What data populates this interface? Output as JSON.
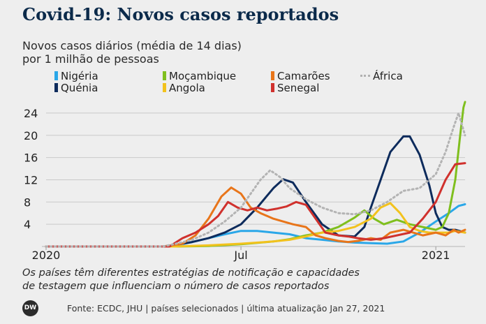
{
  "title": "Covid-19: Novos casos reportados",
  "subtitle_line1": "Novos casos diários (média de 14 dias)",
  "subtitle_line2": "por 1 milhão de pessoas",
  "note_line1": "Os países têm diferentes estratégias de notificação e capacidades",
  "note_line2": "de testagem que influenciam o número de casos reportados",
  "logo_text": "DW",
  "source": "Fonte: ECDC, JHU | países selecionados | última atualização Jan 27, 2021",
  "colors": {
    "nigeria": "#2aa7e8",
    "quenia": "#0d2b5c",
    "mocambique": "#7fbf1e",
    "angola": "#f2c21d",
    "camaroes": "#e8751a",
    "senegal": "#d0312d",
    "africa": "#b3b3b3"
  },
  "chart_data": {
    "type": "line",
    "x_unit": "months since Jan 2020",
    "x_ticks": [
      {
        "x": 0,
        "label": "2020"
      },
      {
        "x": 6,
        "label": "Jul"
      },
      {
        "x": 12,
        "label": "2021"
      }
    ],
    "xlim": [
      0,
      12.9
    ],
    "ylim": [
      0,
      26
    ],
    "y_ticks": [
      4,
      8,
      12,
      16,
      20,
      24
    ],
    "grid": true,
    "legend_position": "top",
    "series": [
      {
        "name": "Nigéria",
        "key": "nigeria",
        "style": "solid",
        "points": [
          [
            0,
            0
          ],
          [
            3.6,
            0
          ],
          [
            4,
            0.2
          ],
          [
            4.5,
            0.8
          ],
          [
            5,
            1.5
          ],
          [
            5.5,
            2.2
          ],
          [
            6,
            2.8
          ],
          [
            6.5,
            2.8
          ],
          [
            7,
            2.5
          ],
          [
            7.5,
            2.2
          ],
          [
            8,
            1.5
          ],
          [
            8.5,
            1.2
          ],
          [
            9,
            0.9
          ],
          [
            9.5,
            0.7
          ],
          [
            10,
            0.6
          ],
          [
            10.5,
            0.5
          ],
          [
            11,
            0.9
          ],
          [
            11.5,
            2.5
          ],
          [
            12,
            4.5
          ],
          [
            12.4,
            6
          ],
          [
            12.7,
            7.3
          ],
          [
            12.9,
            7.6
          ]
        ]
      },
      {
        "name": "Quénia",
        "key": "quenia",
        "style": "solid",
        "points": [
          [
            0,
            0
          ],
          [
            3.6,
            0
          ],
          [
            4,
            0.3
          ],
          [
            4.5,
            0.8
          ],
          [
            5,
            1.5
          ],
          [
            5.5,
            2.5
          ],
          [
            6,
            4
          ],
          [
            6.5,
            7
          ],
          [
            7,
            10.5
          ],
          [
            7.3,
            12.1
          ],
          [
            7.6,
            11.5
          ],
          [
            8,
            8
          ],
          [
            8.5,
            4
          ],
          [
            9,
            2
          ],
          [
            9.5,
            1.8
          ],
          [
            9.8,
            3.5
          ],
          [
            10,
            7
          ],
          [
            10.3,
            12
          ],
          [
            10.6,
            17
          ],
          [
            11,
            19.8
          ],
          [
            11.2,
            19.8
          ],
          [
            11.5,
            16.5
          ],
          [
            11.8,
            11
          ],
          [
            12,
            6
          ],
          [
            12.2,
            3.5
          ],
          [
            12.4,
            3
          ],
          [
            12.6,
            3
          ],
          [
            12.9,
            2.5
          ]
        ]
      },
      {
        "name": "Moçambique",
        "key": "mocambique",
        "style": "solid",
        "points": [
          [
            0,
            0
          ],
          [
            4,
            0
          ],
          [
            5,
            0.1
          ],
          [
            6,
            0.4
          ],
          [
            7,
            0.9
          ],
          [
            7.5,
            1.3
          ],
          [
            8,
            2
          ],
          [
            8.5,
            2.5
          ],
          [
            9,
            3.5
          ],
          [
            9.5,
            5.2
          ],
          [
            9.8,
            6.5
          ],
          [
            10.1,
            5
          ],
          [
            10.4,
            4
          ],
          [
            10.8,
            4.8
          ],
          [
            11.2,
            4
          ],
          [
            11.6,
            3.5
          ],
          [
            12,
            3
          ],
          [
            12.2,
            3.5
          ],
          [
            12.4,
            6
          ],
          [
            12.6,
            12
          ],
          [
            12.75,
            20
          ],
          [
            12.85,
            25
          ],
          [
            12.9,
            26
          ]
        ]
      },
      {
        "name": "Angola",
        "key": "angola",
        "style": "solid",
        "points": [
          [
            0,
            0
          ],
          [
            4,
            0
          ],
          [
            5,
            0.2
          ],
          [
            6,
            0.5
          ],
          [
            7,
            0.9
          ],
          [
            7.5,
            1.2
          ],
          [
            8,
            1.8
          ],
          [
            8.5,
            2.5
          ],
          [
            9,
            2.8
          ],
          [
            9.5,
            3.5
          ],
          [
            10,
            5
          ],
          [
            10.3,
            7
          ],
          [
            10.6,
            7.8
          ],
          [
            10.9,
            6
          ],
          [
            11.2,
            3.5
          ],
          [
            11.5,
            2.8
          ],
          [
            11.8,
            2.5
          ],
          [
            12,
            2.5
          ],
          [
            12.4,
            2.5
          ],
          [
            12.6,
            2.8
          ],
          [
            12.9,
            2.5
          ]
        ]
      },
      {
        "name": "Camarões",
        "key": "camaroes",
        "style": "solid",
        "points": [
          [
            0,
            0
          ],
          [
            3.6,
            0
          ],
          [
            4.2,
            0.5
          ],
          [
            4.6,
            2
          ],
          [
            5,
            5
          ],
          [
            5.4,
            9
          ],
          [
            5.7,
            10.6
          ],
          [
            6,
            9.5
          ],
          [
            6.3,
            7
          ],
          [
            6.6,
            6
          ],
          [
            7,
            5
          ],
          [
            7.3,
            4.5
          ],
          [
            7.6,
            4
          ],
          [
            8,
            3.5
          ],
          [
            8.3,
            2
          ],
          [
            8.6,
            1.5
          ],
          [
            9,
            1
          ],
          [
            9.3,
            0.8
          ],
          [
            9.6,
            1
          ],
          [
            10,
            1.5
          ],
          [
            10.3,
            1.2
          ],
          [
            10.6,
            2.5
          ],
          [
            11,
            3
          ],
          [
            11.3,
            2.5
          ],
          [
            11.6,
            2
          ],
          [
            12,
            2.5
          ],
          [
            12.3,
            2
          ],
          [
            12.55,
            3
          ],
          [
            12.7,
            2.5
          ],
          [
            12.9,
            3
          ]
        ]
      },
      {
        "name": "Senegal",
        "key": "senegal",
        "style": "solid",
        "points": [
          [
            0,
            0
          ],
          [
            3.8,
            0
          ],
          [
            4.2,
            1.5
          ],
          [
            4.6,
            2.5
          ],
          [
            5,
            4
          ],
          [
            5.3,
            5.5
          ],
          [
            5.6,
            8
          ],
          [
            5.9,
            7
          ],
          [
            6.2,
            6.5
          ],
          [
            6.5,
            7
          ],
          [
            6.8,
            6.5
          ],
          [
            7.1,
            6.8
          ],
          [
            7.4,
            7.2
          ],
          [
            7.7,
            8
          ],
          [
            8,
            7.5
          ],
          [
            8.3,
            5
          ],
          [
            8.6,
            2.5
          ],
          [
            9,
            2
          ],
          [
            9.3,
            1.8
          ],
          [
            9.6,
            1.5
          ],
          [
            10,
            1.2
          ],
          [
            10.4,
            1.5
          ],
          [
            10.8,
            2
          ],
          [
            11.2,
            2.5
          ],
          [
            11.6,
            5
          ],
          [
            12,
            8
          ],
          [
            12.3,
            12
          ],
          [
            12.6,
            14.8
          ],
          [
            12.9,
            15
          ]
        ]
      },
      {
        "name": "África",
        "key": "africa",
        "style": "dotted",
        "points": [
          [
            0,
            0
          ],
          [
            3.6,
            0
          ],
          [
            4,
            0.5
          ],
          [
            4.5,
            1.2
          ],
          [
            5,
            2.5
          ],
          [
            5.5,
            4.5
          ],
          [
            6,
            7
          ],
          [
            6.3,
            9.5
          ],
          [
            6.6,
            12
          ],
          [
            6.9,
            13.7
          ],
          [
            7.2,
            12.5
          ],
          [
            7.5,
            10.5
          ],
          [
            8,
            8.5
          ],
          [
            8.5,
            7
          ],
          [
            9,
            6
          ],
          [
            9.5,
            5.8
          ],
          [
            10,
            6.5
          ],
          [
            10.5,
            8
          ],
          [
            11,
            10
          ],
          [
            11.5,
            10.5
          ],
          [
            12,
            13
          ],
          [
            12.3,
            17
          ],
          [
            12.55,
            21.5
          ],
          [
            12.7,
            24
          ],
          [
            12.9,
            20
          ]
        ]
      }
    ]
  }
}
